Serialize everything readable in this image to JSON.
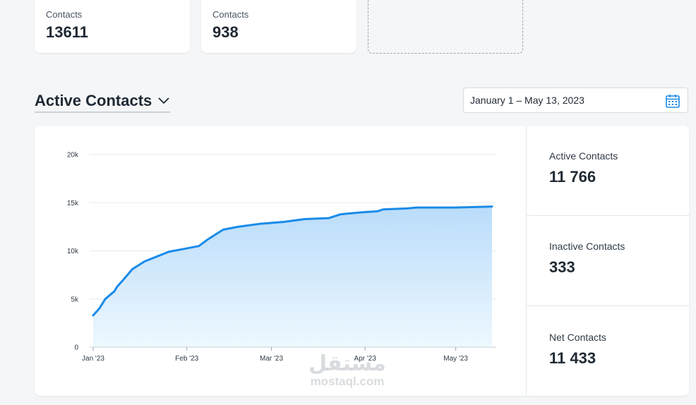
{
  "stats": [
    {
      "label": "Contacts",
      "value": "13611"
    },
    {
      "label": "Contacts",
      "value": "938"
    }
  ],
  "section": {
    "title": "Active Contacts"
  },
  "date_range": {
    "value": "January 1 – May 13, 2023"
  },
  "summary": [
    {
      "label": "Active Contacts",
      "value": "11 766"
    },
    {
      "label": "Inactive Contacts",
      "value": "333"
    },
    {
      "label": "Net Contacts",
      "value": "11 433"
    }
  ],
  "watermark": {
    "arabic": "مستقل",
    "latin": "mostaql.com"
  },
  "colors": {
    "line": "#1a8be8",
    "fill_top": "#b9dcfa",
    "fill_bottom": "#eef8ff",
    "grid": "#e6e9ec",
    "calendar_icon": "#1a8be8"
  },
  "chart_data": {
    "type": "area",
    "title": "",
    "xlabel": "",
    "ylabel": "",
    "ylim": [
      0,
      20000
    ],
    "yticks": [
      {
        "value": 0,
        "label": "0"
      },
      {
        "value": 5000,
        "label": "5k"
      },
      {
        "value": 10000,
        "label": "10k"
      },
      {
        "value": 15000,
        "label": "15k"
      },
      {
        "value": 20000,
        "label": "20k"
      }
    ],
    "xlim": [
      "2023-01-01",
      "2023-05-13"
    ],
    "xticks": [
      {
        "date": "2023-01-01",
        "label": "Jan '23"
      },
      {
        "date": "2023-02-01",
        "label": "Feb '23"
      },
      {
        "date": "2023-03-01",
        "label": "Mar '23"
      },
      {
        "date": "2023-04-01",
        "label": "Apr '23"
      },
      {
        "date": "2023-05-01",
        "label": "May '23"
      }
    ],
    "grid": true,
    "legend": "none",
    "series": [
      {
        "points": [
          [
            "2023-01-01",
            3300
          ],
          [
            "2023-01-03",
            4000
          ],
          [
            "2023-01-05",
            5000
          ],
          [
            "2023-01-08",
            5800
          ],
          [
            "2023-01-09",
            6300
          ],
          [
            "2023-01-11",
            7000
          ],
          [
            "2023-01-14",
            8100
          ],
          [
            "2023-01-18",
            8900
          ],
          [
            "2023-01-22",
            9400
          ],
          [
            "2023-01-26",
            9900
          ],
          [
            "2023-01-31",
            10200
          ],
          [
            "2023-02-05",
            10500
          ],
          [
            "2023-02-08",
            11200
          ],
          [
            "2023-02-13",
            12200
          ],
          [
            "2023-02-18",
            12500
          ],
          [
            "2023-02-25",
            12800
          ],
          [
            "2023-03-05",
            13000
          ],
          [
            "2023-03-12",
            13300
          ],
          [
            "2023-03-20",
            13400
          ],
          [
            "2023-03-24",
            13800
          ],
          [
            "2023-03-31",
            14000
          ],
          [
            "2023-04-05",
            14100
          ],
          [
            "2023-04-07",
            14300
          ],
          [
            "2023-04-15",
            14400
          ],
          [
            "2023-04-18",
            14500
          ],
          [
            "2023-05-01",
            14500
          ],
          [
            "2023-05-13",
            14600
          ]
        ]
      }
    ]
  }
}
